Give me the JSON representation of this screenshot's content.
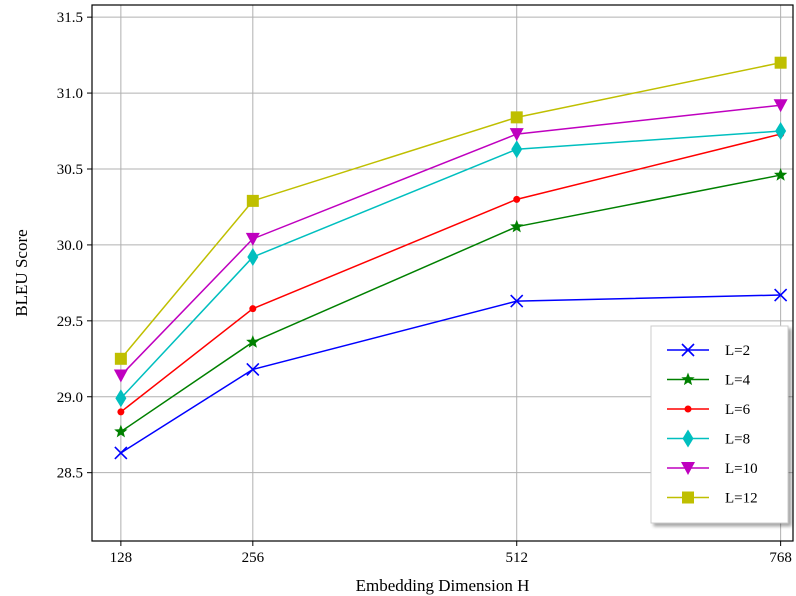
{
  "chart_data": {
    "type": "line",
    "title": "",
    "xlabel": "Embedding Dimension H",
    "ylabel": "BLEU Score",
    "x": [
      128,
      256,
      512,
      768
    ],
    "x_ticks": [
      "128",
      "256",
      "512",
      "768"
    ],
    "y_ticks": [
      "28.5",
      "29.0",
      "29.5",
      "30.0",
      "30.5",
      "31.0",
      "31.5"
    ],
    "xlim": [
      100,
      780
    ],
    "ylim": [
      28.05,
      31.58
    ],
    "grid": true,
    "legend_position": "lower-right",
    "series": [
      {
        "name": "L=2",
        "color": "#0000ff",
        "marker": "x",
        "values": [
          28.63,
          29.18,
          29.63,
          29.67
        ]
      },
      {
        "name": "L=4",
        "color": "#008000",
        "marker": "star",
        "values": [
          28.77,
          29.36,
          30.12,
          30.46
        ]
      },
      {
        "name": "L=6",
        "color": "#ff0000",
        "marker": "circle",
        "values": [
          28.9,
          29.58,
          30.3,
          30.73
        ]
      },
      {
        "name": "L=8",
        "color": "#00bfbf",
        "marker": "thin-diamond",
        "values": [
          28.99,
          29.92,
          30.63,
          30.75
        ]
      },
      {
        "name": "L=10",
        "color": "#bf00bf",
        "marker": "triangle-down",
        "values": [
          29.14,
          30.04,
          30.73,
          30.92
        ]
      },
      {
        "name": "L=12",
        "color": "#bfbf00",
        "marker": "square",
        "values": [
          29.25,
          30.29,
          30.84,
          31.2
        ]
      }
    ]
  }
}
